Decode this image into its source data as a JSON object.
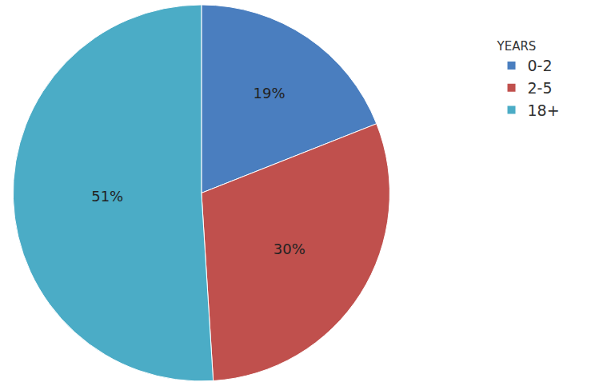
{
  "chart_data": {
    "type": "pie",
    "legend_title": "YEARS",
    "categories": [
      "0-2",
      "2-5",
      "18+"
    ],
    "values": [
      19,
      30,
      51
    ],
    "value_labels": [
      "19%",
      "30%",
      "51%"
    ],
    "colors": [
      "#4a7ebf",
      "#c0504d",
      "#4bacc6"
    ],
    "data_labels": true,
    "legend": "right"
  }
}
